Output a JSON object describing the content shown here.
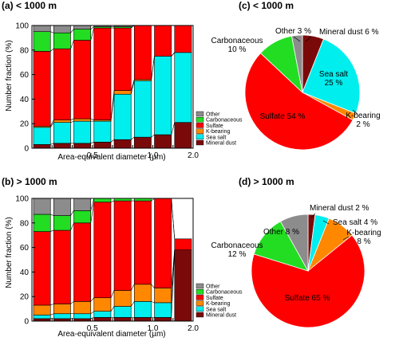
{
  "colors": {
    "Other": "#8c8c8c",
    "Carbonaceous": "#22dd22",
    "Sulfate": "#ff0000",
    "K-bearing": "#ff8800",
    "Sea salt": "#00eeee",
    "Mineral dust": "#7a0a0a"
  },
  "legend_order": [
    "Other",
    "Carbonaceous",
    "Sulfate",
    "K-bearing",
    "Sea salt",
    "Mineral dust"
  ],
  "chart_data": [
    {
      "id": "a",
      "type": "bar",
      "stacked": true,
      "title": "(a) < 1000 m",
      "xlabel": "Area-equivalent diameter (µm)",
      "ylabel": "Number fraction (%)",
      "ylim": [
        0,
        100
      ],
      "yticks": [
        0,
        20,
        40,
        60,
        80,
        100
      ],
      "xticks": [
        {
          "label": "0.5",
          "at": 3
        },
        {
          "label": "1.0",
          "at": 6
        },
        {
          "label": "2.0",
          "at": 8
        }
      ],
      "series": [
        {
          "name": "Mineral dust",
          "values": [
            3,
            4,
            4,
            5,
            7,
            9,
            11,
            21
          ]
        },
        {
          "name": "Sea salt",
          "values": [
            14,
            17,
            18,
            17,
            37,
            46,
            64,
            57
          ]
        },
        {
          "name": "K-bearing",
          "values": [
            1,
            2,
            2,
            1,
            3,
            1,
            0,
            0
          ]
        },
        {
          "name": "Sulfate",
          "values": [
            61,
            58,
            64,
            75,
            51,
            44,
            25,
            22
          ]
        },
        {
          "name": "Carbonaceous",
          "values": [
            16,
            13,
            9,
            1,
            1,
            0,
            0,
            0
          ]
        },
        {
          "name": "Other",
          "values": [
            5,
            6,
            3,
            1,
            1,
            0,
            0,
            0
          ]
        }
      ]
    },
    {
      "id": "b",
      "type": "bar",
      "stacked": true,
      "title": "(b) > 1000 m",
      "xlabel": "Area-equivalent diameter (µm)",
      "ylabel": "Number fraction (%)",
      "ylim": [
        0,
        100
      ],
      "yticks": [
        0,
        20,
        40,
        60,
        80,
        100
      ],
      "xticks": [
        {
          "label": "0.5",
          "at": 3
        },
        {
          "label": "1.0",
          "at": 6
        },
        {
          "label": "2.0",
          "at": 8
        }
      ],
      "series": [
        {
          "name": "Mineral dust",
          "values": [
            2,
            2,
            2,
            3,
            3,
            3,
            3,
            58
          ]
        },
        {
          "name": "Sea salt",
          "values": [
            3,
            4,
            4,
            5,
            9,
            13,
            12,
            0
          ]
        },
        {
          "name": "K-bearing",
          "values": [
            8,
            8,
            10,
            11,
            13,
            14,
            12,
            0
          ]
        },
        {
          "name": "Sulfate",
          "values": [
            60,
            60,
            64,
            78,
            73,
            68,
            73,
            9
          ]
        },
        {
          "name": "Carbonaceous",
          "values": [
            14,
            12,
            10,
            3,
            2,
            2,
            0,
            0
          ]
        },
        {
          "name": "Other",
          "values": [
            13,
            14,
            10,
            0,
            0,
            0,
            0,
            0
          ]
        }
      ]
    },
    {
      "id": "c",
      "type": "pie",
      "title": "(c) < 1000 m",
      "slices": [
        {
          "name": "Mineral dust",
          "value": 6,
          "label": "Mineral dust 6 %"
        },
        {
          "name": "Sea salt",
          "value": 25,
          "label": "Sea salt 25 %"
        },
        {
          "name": "K-bearing",
          "value": 2,
          "label": "K-bearing 2 %"
        },
        {
          "name": "Sulfate",
          "value": 54,
          "label": "Sulfate 54 %"
        },
        {
          "name": "Carbonaceous",
          "value": 10,
          "label": "Carbonaceous 10 %"
        },
        {
          "name": "Other",
          "value": 3,
          "label": "Other 3 %"
        }
      ]
    },
    {
      "id": "d",
      "type": "pie",
      "title": "(d) > 1000 m",
      "slices": [
        {
          "name": "Mineral dust",
          "value": 2,
          "label": "Mineral dust 2 %"
        },
        {
          "name": "Sea salt",
          "value": 4,
          "label": "Sea salt 4 %"
        },
        {
          "name": "K-bearing",
          "value": 8,
          "label": "K-bearing 8 %"
        },
        {
          "name": "Sulfate",
          "value": 65,
          "label": "Sulfate 65 %"
        },
        {
          "name": "Carbonaceous",
          "value": 12,
          "label": "Carbonaceous 12 %"
        },
        {
          "name": "Other",
          "value": 8,
          "label": "Other 8 %"
        }
      ]
    }
  ]
}
